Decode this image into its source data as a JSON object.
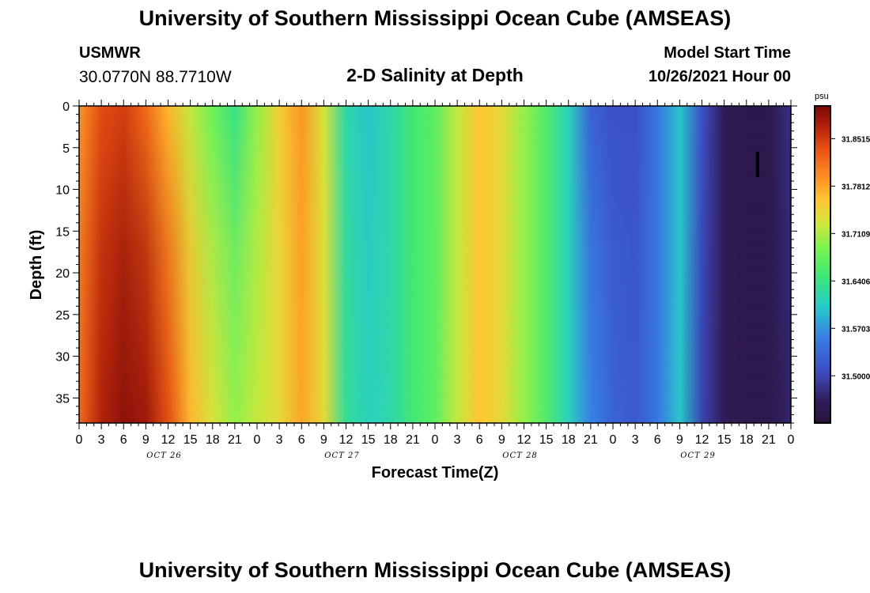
{
  "header": {
    "title": "University of Southern Mississippi Ocean Cube (AMSEAS)",
    "station": "USMWR",
    "coords": "30.0770N  88.7710W",
    "subtitle": "2-D Salinity at Depth",
    "start_label": "Model Start Time",
    "start_value": "10/26/2021 Hour 00"
  },
  "footer": {
    "title": "University of Southern Mississippi Ocean Cube (AMSEAS)"
  },
  "chart_data": {
    "type": "heatmap",
    "title": "2-D Salinity at Depth",
    "xlabel": "Forecast Time(Z)",
    "ylabel": "Depth (ft)",
    "x_range_hours": [
      0,
      96
    ],
    "y_range_ft": [
      0,
      38
    ],
    "y_inverted": true,
    "x_tick_labels": [
      "0",
      "3",
      "6",
      "9",
      "12",
      "15",
      "18",
      "21",
      "0",
      "3",
      "6",
      "9",
      "12",
      "15",
      "18",
      "21",
      "0",
      "3",
      "6",
      "9",
      "12",
      "15",
      "18",
      "21",
      "0",
      "3",
      "6",
      "9",
      "12",
      "15",
      "18",
      "21",
      "0"
    ],
    "date_labels": [
      "OCT 26",
      "OCT 27",
      "OCT 28",
      "OCT 29"
    ],
    "y_ticks": [
      0,
      5,
      10,
      15,
      20,
      25,
      30,
      35
    ],
    "colorbar": {
      "unit": "psu",
      "min": 31.43,
      "max": 31.9,
      "ticks": [
        "31.8515",
        "31.7812",
        "31.7109",
        "31.6406",
        "31.5703",
        "31.5000"
      ],
      "tick_values": [
        31.8515,
        31.7812,
        31.7109,
        31.6406,
        31.5703,
        31.5
      ]
    },
    "salinity_time_series": {
      "hours": [
        0,
        3,
        6,
        9,
        12,
        15,
        18,
        21,
        24,
        27,
        30,
        33,
        36,
        39,
        42,
        45,
        48,
        51,
        54,
        57,
        60,
        63,
        66,
        69,
        72,
        75,
        78,
        81,
        84,
        87,
        90,
        93,
        96
      ],
      "surface_psu": [
        31.79,
        31.84,
        31.85,
        31.82,
        31.77,
        31.72,
        31.68,
        31.64,
        31.7,
        31.75,
        31.79,
        31.73,
        31.62,
        31.6,
        31.62,
        31.65,
        31.67,
        31.72,
        31.76,
        31.74,
        31.7,
        31.66,
        31.61,
        31.53,
        31.51,
        31.51,
        31.55,
        31.6,
        31.51,
        31.46,
        31.45,
        31.45,
        31.48
      ],
      "bottom_psu": [
        31.82,
        31.87,
        31.89,
        31.88,
        31.84,
        31.77,
        31.73,
        31.7,
        31.72,
        31.74,
        31.78,
        31.74,
        31.63,
        31.61,
        31.62,
        31.65,
        31.67,
        31.72,
        31.76,
        31.74,
        31.7,
        31.66,
        31.61,
        31.56,
        31.53,
        31.52,
        31.55,
        31.6,
        31.5,
        31.46,
        31.45,
        31.45,
        31.47
      ]
    },
    "marker": {
      "hour": 91.5,
      "depth_ft": [
        5.5,
        8.5
      ]
    }
  }
}
